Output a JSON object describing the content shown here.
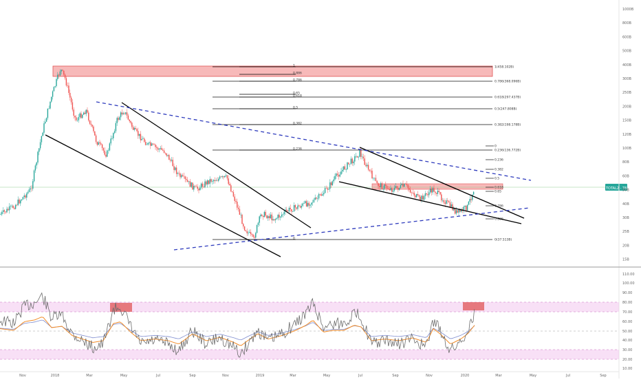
{
  "colors": {
    "up": "#26a69a",
    "down": "#ef5350",
    "trendline": "#000000",
    "dashed": "#2e3bbd",
    "rsi": "#6b6b6b",
    "ma_orange": "#f28c28",
    "ma_blue": "#7e8ccf",
    "zone_red": "#f28b8b",
    "zone_pink": "#f3c6ef",
    "price_badge": "#26a69a"
  },
  "price_axis": {
    "labels": [
      "1000B",
      "800B",
      "600B",
      "500B",
      "400B",
      "300B",
      "250B",
      "200B",
      "150B",
      "120B",
      "100B",
      "80B",
      "60B",
      "50B",
      "40B",
      "30B",
      "25B",
      "20B",
      "15B"
    ],
    "last_label": "TOTAL2 · 78.997B"
  },
  "rsi_axis": {
    "labels": [
      "110.00",
      "100.00",
      "90.00",
      "80.00",
      "70.00",
      "60.00",
      "50.00",
      "40.00",
      "30.00",
      "20.00",
      "10.00"
    ]
  },
  "time_axis": {
    "labels": [
      "Nov",
      "2018",
      "Mar",
      "May",
      "Jul",
      "Sep",
      "Nov",
      "2019",
      "Mar",
      "May",
      "Jul",
      "Sep",
      "Nov",
      "2020",
      "Mar",
      "May",
      "Jul",
      "Sep"
    ]
  },
  "fib_left": {
    "levels": [
      "1",
      "0.886",
      "0.786",
      "0.65",
      "0.618",
      "0.5",
      "0.382",
      "0.236",
      "0"
    ]
  },
  "fib_right_main": {
    "levels": [
      "1(458.102B)",
      "0.786(368.096B)",
      "0.618(297.437B)",
      "0.5(247.808B)",
      "0.382(198.178B)",
      "0.236(136.772B)",
      "0(37.513B)"
    ]
  },
  "fib_right_small": {
    "levels": [
      "0",
      "0.236",
      "0.382",
      "0.5",
      "0.618",
      "0.65",
      "0.786",
      "0.886"
    ]
  },
  "chart_data": [
    {
      "type": "line",
      "title": "",
      "series": [
        {
          "x": [
            "Nov",
            "2018",
            "Mar",
            "May",
            "Jul",
            "Sep",
            "Nov",
            "2019",
            "Mar",
            "May",
            "Jul",
            "Sep",
            "Nov",
            "2020"
          ],
          "values": [
            140,
            458,
            230,
            300,
            120,
            95,
            37.5,
            60,
            80,
            95,
            190,
            100,
            85,
            79
          ]
        }
      ],
      "ylim": [
        15,
        1000
      ],
      "log_scale": true,
      "fib_levels": {
        "1": 458.102,
        "0.786": 368.096,
        "0.618": 297.437,
        "0.5": 247.808,
        "0.382": 198.178,
        "0.236": 136.772,
        "0": 37.513
      },
      "last_value": 78.997
    },
    {
      "type": "line",
      "title": "",
      "series": [
        {
          "x": [
            "Nov",
            "2018",
            "Mar",
            "May",
            "Jul",
            "Sep",
            "Nov",
            "2019",
            "Mar",
            "May",
            "Jul",
            "Sep",
            "Nov",
            "2020"
          ],
          "values": [
            50,
            85,
            55,
            80,
            45,
            50,
            28,
            40,
            70,
            75,
            55,
            35,
            32,
            75
          ]
        }
      ],
      "ylim": [
        10,
        110
      ],
      "zones": [
        [
          70,
          80
        ],
        [
          20,
          30
        ]
      ]
    }
  ]
}
